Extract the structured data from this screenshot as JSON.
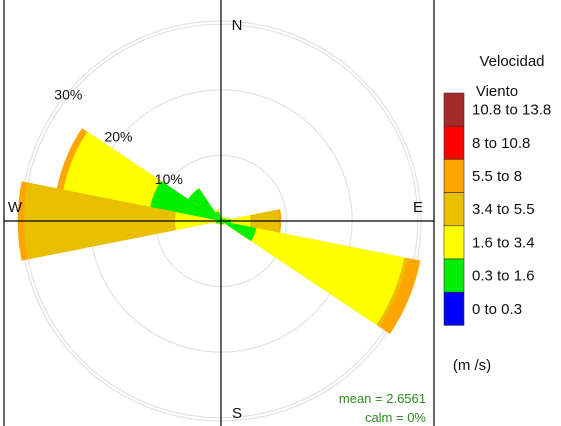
{
  "chart_data": {
    "type": "windrose",
    "mean_text": "mean = 2.6561",
    "calm_text": "calm = 0%",
    "compass_labels": {
      "north": "N",
      "south": "S",
      "east": "E",
      "west": "W"
    },
    "radial_ticks": [
      10,
      20,
      30
    ],
    "radial_tick_labels": [
      "10%",
      "20%",
      "30%"
    ],
    "radial_max_percent": 30.5,
    "legend": {
      "title_line1": "Velocidad",
      "title_line2": "Viento",
      "units": "(m /s)",
      "bins": [
        {
          "label": "10.8 to 13.8",
          "color": "#a52a2a"
        },
        {
          "label": "8 to 10.8",
          "color": "#ff0000"
        },
        {
          "label": "5.5 to 8",
          "color": "#ffa500"
        },
        {
          "label": "3.4 to 5.5",
          "color": "#e8c000"
        },
        {
          "label": "1.6 to 3.4",
          "color": "#ffff00"
        },
        {
          "label": "0.3 to 1.6",
          "color": "#00ee00"
        },
        {
          "label": "0 to 0.3",
          "color": "#0000ff"
        }
      ]
    },
    "petal_bins_inner_to_outer": [
      "0 to 0.3",
      "0.3 to 1.6",
      "1.6 to 3.4",
      "3.4 to 5.5",
      "5.5 to 8"
    ],
    "petals": [
      {
        "direction_deg": 0,
        "cumulative_percent": [
          0.1,
          0.5,
          0.8,
          0.8,
          0.8
        ]
      },
      {
        "direction_deg": 22.5,
        "cumulative_percent": [
          0.1,
          0.4,
          0.6,
          0.6,
          0.6
        ]
      },
      {
        "direction_deg": 45,
        "cumulative_percent": [
          0.1,
          0.5,
          0.7,
          0.7,
          0.7
        ]
      },
      {
        "direction_deg": 67.5,
        "cumulative_percent": [
          0.1,
          0.8,
          1.2,
          1.2,
          1.2
        ]
      },
      {
        "direction_deg": 90,
        "cumulative_percent": [
          0.1,
          1.5,
          4.5,
          8.8,
          9.2
        ]
      },
      {
        "direction_deg": 112.5,
        "cumulative_percent": [
          0.1,
          5.5,
          28.5,
          29.0,
          31.0
        ]
      },
      {
        "direction_deg": 135,
        "cumulative_percent": [
          0.1,
          0.6,
          0.8,
          0.8,
          0.8
        ]
      },
      {
        "direction_deg": 157.5,
        "cumulative_percent": [
          0.1,
          0.5,
          0.6,
          0.6,
          0.6
        ]
      },
      {
        "direction_deg": 180,
        "cumulative_percent": [
          0.1,
          0.3,
          0.3,
          0.3,
          0.3
        ]
      },
      {
        "direction_deg": 202.5,
        "cumulative_percent": [
          0.1,
          0.4,
          0.5,
          0.5,
          0.5
        ]
      },
      {
        "direction_deg": 225,
        "cumulative_percent": [
          0.1,
          0.5,
          0.6,
          0.6,
          0.6
        ]
      },
      {
        "direction_deg": 247.5,
        "cumulative_percent": [
          0.1,
          0.8,
          1.0,
          1.0,
          1.0
        ]
      },
      {
        "direction_deg": 270,
        "cumulative_percent": [
          0.2,
          0.3,
          7.0,
          30.0,
          31.0
        ]
      },
      {
        "direction_deg": 292.5,
        "cumulative_percent": [
          0.2,
          11.0,
          24.5,
          24.5,
          25.5
        ]
      },
      {
        "direction_deg": 315,
        "cumulative_percent": [
          0.1,
          6.0,
          6.0,
          6.0,
          6.0
        ]
      },
      {
        "direction_deg": 337.5,
        "cumulative_percent": [
          0.1,
          1.5,
          1.8,
          1.8,
          1.8
        ]
      }
    ]
  }
}
